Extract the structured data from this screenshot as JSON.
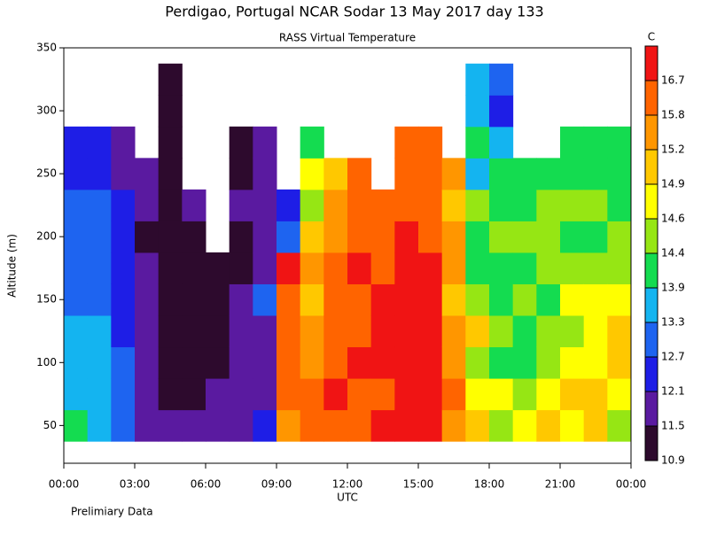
{
  "chart_data": {
    "type": "contour",
    "title": "Perdigao, Portugal  NCAR Sodar  13 May 2017  day 133",
    "subtitle": "RASS Virtual Temperature",
    "ylabel": "Altitude (m)",
    "xlabel": "UTC",
    "colorbar_label": "C",
    "note": "Prelimiary Data",
    "x": [
      0.5,
      1.5,
      2.5,
      3.5,
      4.5,
      5.5,
      6.5,
      7.5,
      8.5,
      9.5,
      10.5,
      11.5,
      12.5,
      13.5,
      14.5,
      15.5,
      16.5,
      17.5,
      18.5,
      19.5,
      20.5,
      21.5,
      22.5,
      23.5
    ],
    "y": [
      50,
      75,
      100,
      125,
      150,
      175,
      200,
      225,
      250,
      275,
      300,
      325
    ],
    "values": [
      [
        14.1,
        13.6,
        13.6,
        13.6,
        13.0,
        13.0,
        13.0,
        13.0,
        12.4,
        12.4,
        null,
        null
      ],
      [
        13.6,
        13.6,
        13.6,
        13.6,
        13.0,
        13.0,
        13.0,
        13.0,
        12.4,
        12.4,
        null,
        null
      ],
      [
        13.0,
        13.0,
        13.0,
        12.4,
        12.4,
        12.4,
        12.4,
        12.4,
        11.8,
        11.8,
        null,
        null
      ],
      [
        11.8,
        11.8,
        11.8,
        11.8,
        11.8,
        11.8,
        11.2,
        11.8,
        11.8,
        null,
        null,
        null
      ],
      [
        11.8,
        11.2,
        11.2,
        11.2,
        11.2,
        11.2,
        11.2,
        11.2,
        11.2,
        11.2,
        11.2,
        11.2
      ],
      [
        11.8,
        11.2,
        11.2,
        11.2,
        11.2,
        11.2,
        11.2,
        11.8,
        null,
        null,
        null,
        null
      ],
      [
        11.8,
        11.8,
        11.2,
        11.2,
        11.2,
        11.2,
        null,
        null,
        null,
        null,
        null,
        null
      ],
      [
        11.8,
        11.8,
        11.8,
        11.8,
        11.8,
        11.2,
        11.2,
        11.8,
        11.2,
        11.2,
        null,
        null
      ],
      [
        12.4,
        11.8,
        11.8,
        11.8,
        13.0,
        11.8,
        11.8,
        11.8,
        11.8,
        11.8,
        null,
        null
      ],
      [
        15.5,
        16.2,
        16.2,
        16.2,
        16.2,
        17.0,
        13.0,
        12.4,
        null,
        null,
        null,
        null
      ],
      [
        16.2,
        16.2,
        15.5,
        15.5,
        15.0,
        15.5,
        15.0,
        14.5,
        14.7,
        14.1,
        null,
        null
      ],
      [
        16.2,
        17.0,
        16.2,
        16.2,
        16.2,
        16.2,
        15.5,
        15.5,
        15.0,
        null,
        null,
        null
      ],
      [
        16.2,
        16.2,
        17.0,
        16.2,
        16.2,
        17.0,
        16.2,
        16.2,
        16.2,
        null,
        null,
        null
      ],
      [
        17.0,
        16.2,
        17.0,
        17.0,
        17.0,
        16.2,
        16.2,
        16.2,
        null,
        null,
        null,
        null
      ],
      [
        17.0,
        17.0,
        17.0,
        17.0,
        17.0,
        17.0,
        17.0,
        16.2,
        16.2,
        16.2,
        null,
        null
      ],
      [
        17.0,
        17.0,
        17.0,
        17.0,
        17.0,
        17.0,
        16.2,
        16.2,
        16.2,
        16.2,
        null,
        null
      ],
      [
        15.5,
        16.2,
        15.5,
        15.5,
        15.0,
        15.5,
        15.5,
        15.0,
        15.5,
        null,
        null,
        null
      ],
      [
        15.0,
        14.7,
        14.5,
        15.0,
        14.5,
        14.1,
        14.1,
        14.5,
        13.6,
        14.1,
        13.6,
        13.6
      ],
      [
        14.5,
        14.7,
        14.1,
        14.5,
        14.1,
        14.1,
        14.5,
        14.1,
        14.1,
        13.6,
        12.4,
        13.0
      ],
      [
        14.7,
        14.5,
        14.1,
        14.1,
        14.5,
        14.1,
        14.5,
        14.1,
        14.1,
        null,
        null,
        null
      ],
      [
        15.0,
        14.7,
        14.5,
        14.5,
        14.1,
        14.5,
        14.5,
        14.5,
        14.1,
        null,
        null,
        null
      ],
      [
        14.7,
        15.0,
        14.7,
        14.5,
        14.7,
        14.5,
        14.1,
        14.5,
        14.1,
        14.1,
        null,
        null
      ],
      [
        15.0,
        15.0,
        14.7,
        14.7,
        14.7,
        14.5,
        14.1,
        14.5,
        14.1,
        14.1,
        null,
        null
      ],
      [
        14.5,
        14.7,
        15.0,
        15.0,
        14.7,
        14.5,
        14.5,
        14.1,
        14.1,
        14.1,
        null,
        null
      ]
    ],
    "xlim": [
      0,
      24
    ],
    "xticks": [
      {
        "value": 0,
        "label": "00:00"
      },
      {
        "value": 3,
        "label": "03:00"
      },
      {
        "value": 6,
        "label": "06:00"
      },
      {
        "value": 9,
        "label": "09:00"
      },
      {
        "value": 12,
        "label": "12:00"
      },
      {
        "value": 15,
        "label": "15:00"
      },
      {
        "value": 18,
        "label": "18:00"
      },
      {
        "value": 21,
        "label": "21:00"
      },
      {
        "value": 24,
        "label": "00:00"
      }
    ],
    "ylim": [
      20,
      350
    ],
    "yticks": [
      50,
      100,
      150,
      200,
      250,
      300,
      350
    ],
    "levels": [
      10.9,
      11.5,
      12.1,
      12.7,
      13.3,
      13.9,
      14.4,
      14.6,
      14.9,
      15.2,
      15.8,
      16.7
    ],
    "colors": [
      "#2d0a2d",
      "#5a1aa0",
      "#1e1ee6",
      "#1e64f0",
      "#14b4f0",
      "#14dc50",
      "#96e614",
      "#ffff00",
      "#ffc800",
      "#ff9600",
      "#ff6400",
      "#f01414"
    ]
  }
}
